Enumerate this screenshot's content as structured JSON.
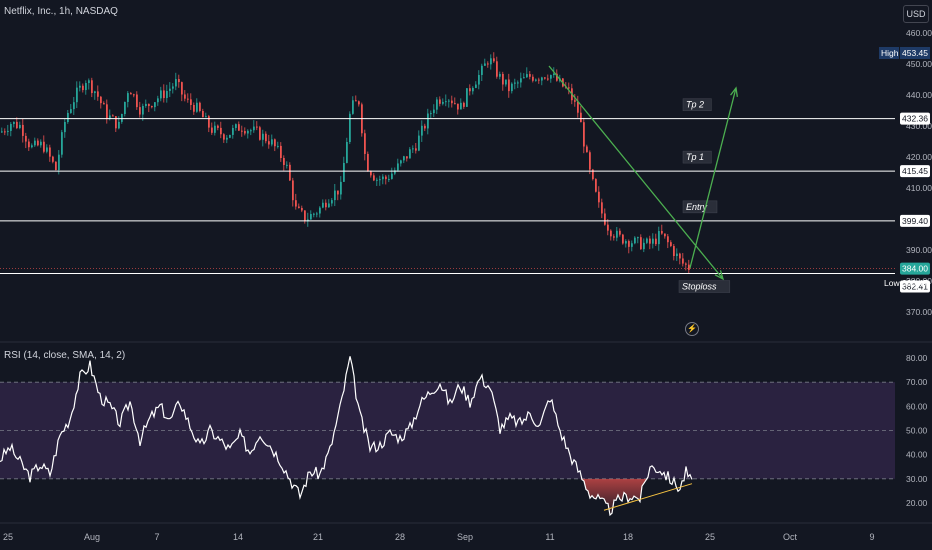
{
  "title": "Netflix, Inc., 1h, NASDAQ",
  "currency": "USD",
  "rsi_title": "RSI (14, close, SMA, 14, 2)",
  "colors": {
    "bg": "#131722",
    "up": "#26a69a",
    "down": "#ef5350",
    "grid": "#2a2e39",
    "axis_text": "#b2b5be",
    "trend": "#4caf50",
    "rsi_line": "#ffffff",
    "rsi_band": "#2a2240",
    "ma": "#f5c242"
  },
  "chart_data": [
    {
      "type": "candlestick",
      "title": "Netflix, Inc., 1h, NASDAQ",
      "ylim": [
        366,
        462
      ],
      "y_ticks": [
        370,
        380,
        390,
        410,
        420,
        430,
        440,
        450,
        460
      ],
      "x_ticks": [
        "25",
        "Aug",
        "7",
        "14",
        "21",
        "28",
        "Sep",
        "11",
        "18",
        "25",
        "Oct",
        "9"
      ],
      "anchor_path": [
        [
          0,
          428
        ],
        [
          10,
          431
        ],
        [
          20,
          430
        ],
        [
          30,
          423
        ],
        [
          42,
          424
        ],
        [
          55,
          416
        ],
        [
          65,
          433
        ],
        [
          75,
          440
        ],
        [
          85,
          445
        ],
        [
          95,
          441
        ],
        [
          105,
          434
        ],
        [
          118,
          430
        ],
        [
          128,
          443
        ],
        [
          140,
          435
        ],
        [
          152,
          438
        ],
        [
          165,
          441
        ],
        [
          175,
          444
        ],
        [
          185,
          438
        ],
        [
          195,
          436
        ],
        [
          210,
          429
        ],
        [
          225,
          427
        ],
        [
          240,
          430
        ],
        [
          255,
          428
        ],
        [
          270,
          425
        ],
        [
          285,
          418
        ],
        [
          295,
          403
        ],
        [
          305,
          400
        ],
        [
          318,
          403
        ],
        [
          328,
          407
        ],
        [
          340,
          410
        ],
        [
          350,
          436
        ],
        [
          358,
          438
        ],
        [
          365,
          418
        ],
        [
          375,
          413
        ],
        [
          385,
          413
        ],
        [
          395,
          416
        ],
        [
          405,
          420
        ],
        [
          415,
          424
        ],
        [
          425,
          431
        ],
        [
          435,
          438
        ],
        [
          445,
          440
        ],
        [
          460,
          436
        ],
        [
          470,
          443
        ],
        [
          480,
          447
        ],
        [
          488,
          452
        ],
        [
          498,
          446
        ],
        [
          508,
          442
        ],
        [
          518,
          444
        ],
        [
          528,
          446
        ],
        [
          538,
          446
        ],
        [
          548,
          447
        ],
        [
          558,
          444
        ],
        [
          568,
          441
        ],
        [
          578,
          434
        ],
        [
          588,
          416
        ],
        [
          598,
          404
        ],
        [
          608,
          397
        ],
        [
          618,
          394
        ],
        [
          628,
          393
        ],
        [
          640,
          392
        ],
        [
          650,
          392
        ],
        [
          660,
          395
        ],
        [
          670,
          391
        ],
        [
          680,
          386
        ],
        [
          690,
          384
        ]
      ],
      "resistance_levels": [
        {
          "label": "Tp 2",
          "price": 432.36
        },
        {
          "label": "Tp 1",
          "price": 415.45
        },
        {
          "label": "Entry",
          "price": 399.4
        },
        {
          "label": "Stoploss",
          "price": 382.41
        }
      ],
      "current_price": 384.0,
      "high": {
        "label": "High",
        "value": 453.45
      },
      "low": {
        "label": "Low",
        "value": 383.47
      },
      "labels": {
        "p_432": "432.36",
        "p_415": "415.45",
        "p_399": "399.40",
        "p_384": "384.00",
        "p_383": "383.47",
        "p_382": "382.41",
        "p_453": "453.45",
        "high": "High",
        "low": "Low"
      }
    },
    {
      "type": "line",
      "title": "RSI (14, close, SMA, 14, 2)",
      "ylim": [
        15,
        85
      ],
      "y_ticks": [
        20,
        30,
        40,
        50,
        60,
        70,
        80
      ],
      "bands": [
        30,
        50,
        70
      ],
      "series": [
        {
          "values_path": [
            [
              0,
              38
            ],
            [
              10,
              43
            ],
            [
              20,
              37
            ],
            [
              30,
              31
            ],
            [
              40,
              36
            ],
            [
              50,
              32
            ],
            [
              60,
              48
            ],
            [
              70,
              55
            ],
            [
              80,
              72
            ],
            [
              90,
              77
            ],
            [
              100,
              64
            ],
            [
              110,
              60
            ],
            [
              120,
              53
            ],
            [
              130,
              62
            ],
            [
              140,
              46
            ],
            [
              150,
              55
            ],
            [
              160,
              60
            ],
            [
              170,
              54
            ],
            [
              180,
              62
            ],
            [
              190,
              52
            ],
            [
              200,
              43
            ],
            [
              210,
              50
            ],
            [
              220,
              46
            ],
            [
              230,
              42
            ],
            [
              240,
              48
            ],
            [
              250,
              41
            ],
            [
              260,
              49
            ],
            [
              270,
              44
            ],
            [
              280,
              38
            ],
            [
              290,
              30
            ],
            [
              300,
              23
            ],
            [
              310,
              33
            ],
            [
              320,
              32
            ],
            [
              330,
              42
            ],
            [
              340,
              59
            ],
            [
              350,
              80
            ],
            [
              360,
              56
            ],
            [
              370,
              43
            ],
            [
              380,
              44
            ],
            [
              390,
              49
            ],
            [
              400,
              47
            ],
            [
              410,
              51
            ],
            [
              420,
              61
            ],
            [
              430,
              66
            ],
            [
              440,
              70
            ],
            [
              450,
              61
            ],
            [
              460,
              69
            ],
            [
              470,
              62
            ],
            [
              480,
              72
            ],
            [
              490,
              68
            ],
            [
              500,
              51
            ],
            [
              510,
              55
            ],
            [
              520,
              53
            ],
            [
              530,
              57
            ],
            [
              540,
              52
            ],
            [
              550,
              64
            ],
            [
              560,
              50
            ],
            [
              570,
              40
            ],
            [
              580,
              32
            ],
            [
              590,
              24
            ],
            [
              600,
              21
            ],
            [
              610,
              17
            ],
            [
              620,
              22
            ],
            [
              630,
              23
            ],
            [
              640,
              22
            ],
            [
              650,
              35
            ],
            [
              660,
              34
            ],
            [
              670,
              30
            ],
            [
              680,
              26
            ],
            [
              686,
              33
            ],
            [
              692,
              28
            ]
          ]
        }
      ]
    }
  ]
}
